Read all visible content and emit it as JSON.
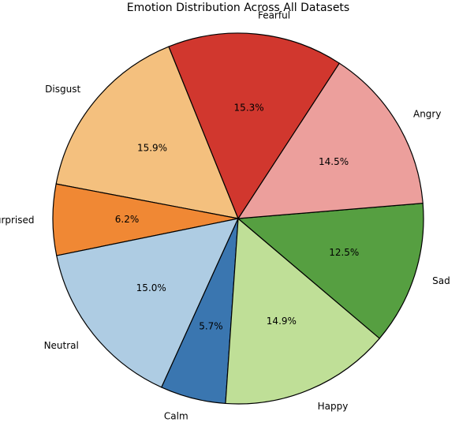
{
  "chart_data": {
    "type": "pie",
    "title": "Emotion Distribution Across All Datasets",
    "start_angle_deg": 112,
    "direction": "counterclockwise",
    "label_format": "percent_one_decimal",
    "edge_color": "#000000",
    "slices": [
      {
        "label": "Disgust",
        "value": 15.9,
        "pct_text": "15.9%",
        "color": "#f4c07e"
      },
      {
        "label": "Surprised",
        "value": 6.2,
        "pct_text": "6.2%",
        "color": "#f08834"
      },
      {
        "label": "Neutral",
        "value": 15.0,
        "pct_text": "15.0%",
        "color": "#aecce3"
      },
      {
        "label": "Calm",
        "value": 5.7,
        "pct_text": "5.7%",
        "color": "#3a76b0"
      },
      {
        "label": "Happy",
        "value": 14.9,
        "pct_text": "14.9%",
        "color": "#bfdf97"
      },
      {
        "label": "Sad",
        "value": 12.5,
        "pct_text": "12.5%",
        "color": "#569f41"
      },
      {
        "label": "Angry",
        "value": 14.5,
        "pct_text": "14.5%",
        "color": "#ec9f9c"
      },
      {
        "label": "Fearful",
        "value": 15.3,
        "pct_text": "15.3%",
        "color": "#d1372e"
      }
    ]
  }
}
